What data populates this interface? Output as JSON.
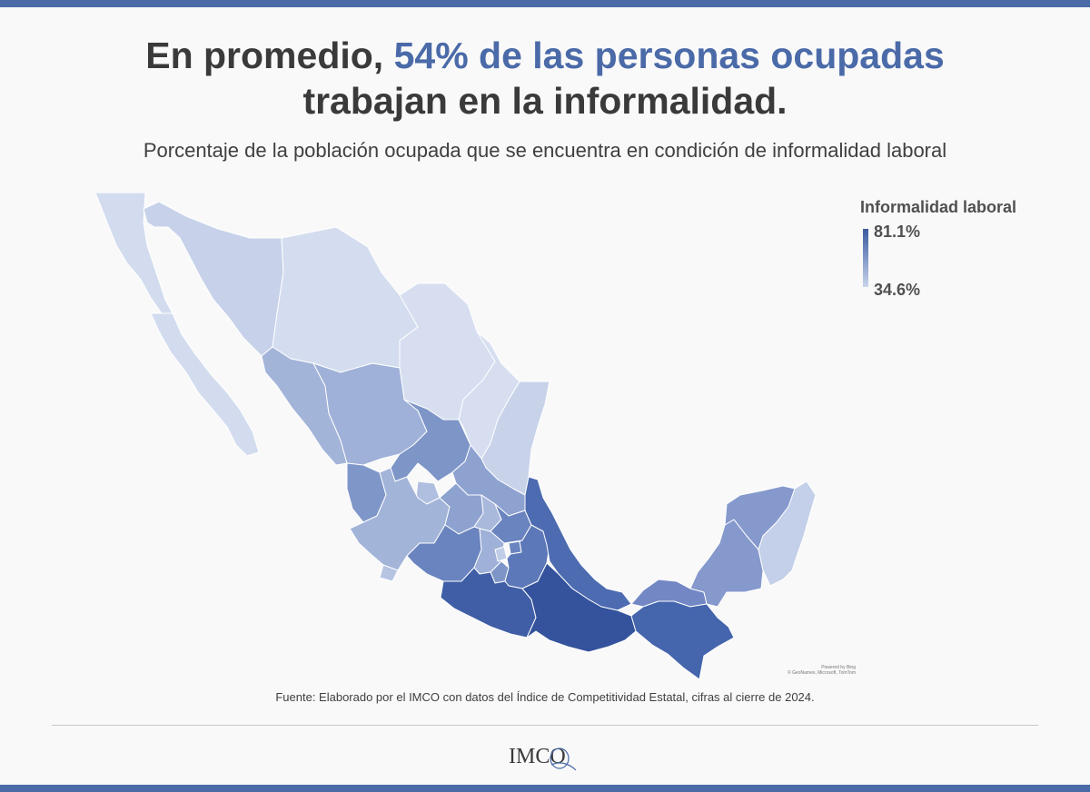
{
  "header": {
    "title_part1": "En promedio, ",
    "title_highlight": "54% de las personas ocupadas",
    "title_part2": "trabajan en la informalidad.",
    "subtitle": "Porcentaje de la población ocupada que se encuentra en condición de informalidad laboral"
  },
  "legend": {
    "title": "Informalidad laboral",
    "max_label": "81.1%",
    "min_label": "34.6%",
    "max_value": 81.1,
    "min_value": 34.6,
    "color_max": "#3a5aa0",
    "color_min": "#c9d4ec"
  },
  "map": {
    "credit_line1": "Powered by Bing",
    "credit_line2": "© GeoNames, Microsoft, TomTom"
  },
  "footer": {
    "source": "Fuente: Elaborado por el IMCO con datos del Índice de Competitividad Estatal, cifras al cierre de 2024.",
    "logo_text": "IMCO"
  },
  "colors": {
    "accent": "#4a6aa8",
    "text_dark": "#3a3a3a",
    "background": "#f9f9f9"
  }
}
